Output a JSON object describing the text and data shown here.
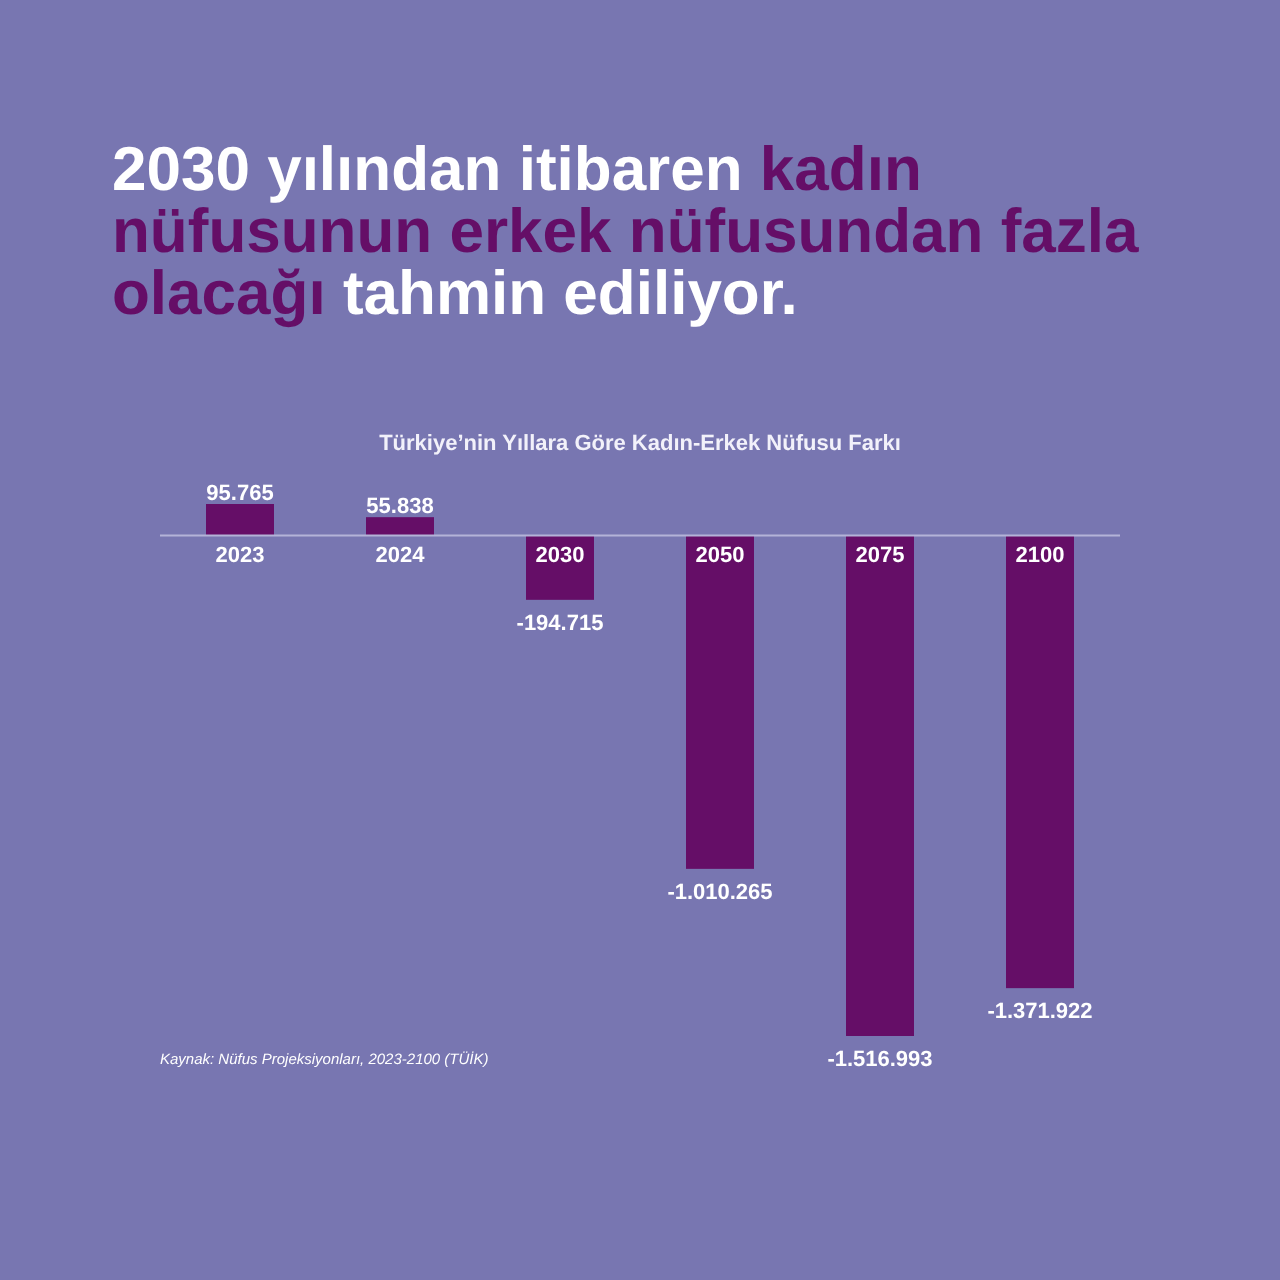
{
  "chart_data": {
    "type": "bar",
    "title": "2030 yılından itibaren kadın nüfusunun erkek nüfusundan fazla olacağı tahmin ediliyor.",
    "subtitle": "Türkiye’nin Yıllara Göre Kadın-Erkek Nüfusu Farkı",
    "categories": [
      "2023",
      "2024",
      "2030",
      "2050",
      "2075",
      "2100"
    ],
    "values": [
      95765,
      55838,
      -194715,
      -1010265,
      -1516993,
      -1371922
    ],
    "value_labels": [
      "95.765",
      "55.838",
      "-194.715",
      "-1.010.265",
      "-1.516.993",
      "-1.371.922"
    ],
    "color": "#650e67",
    "annotations": [
      "Kaynak: Nüfus Projeksiyonları, 2023-2100 (TÜİK)"
    ]
  }
}
